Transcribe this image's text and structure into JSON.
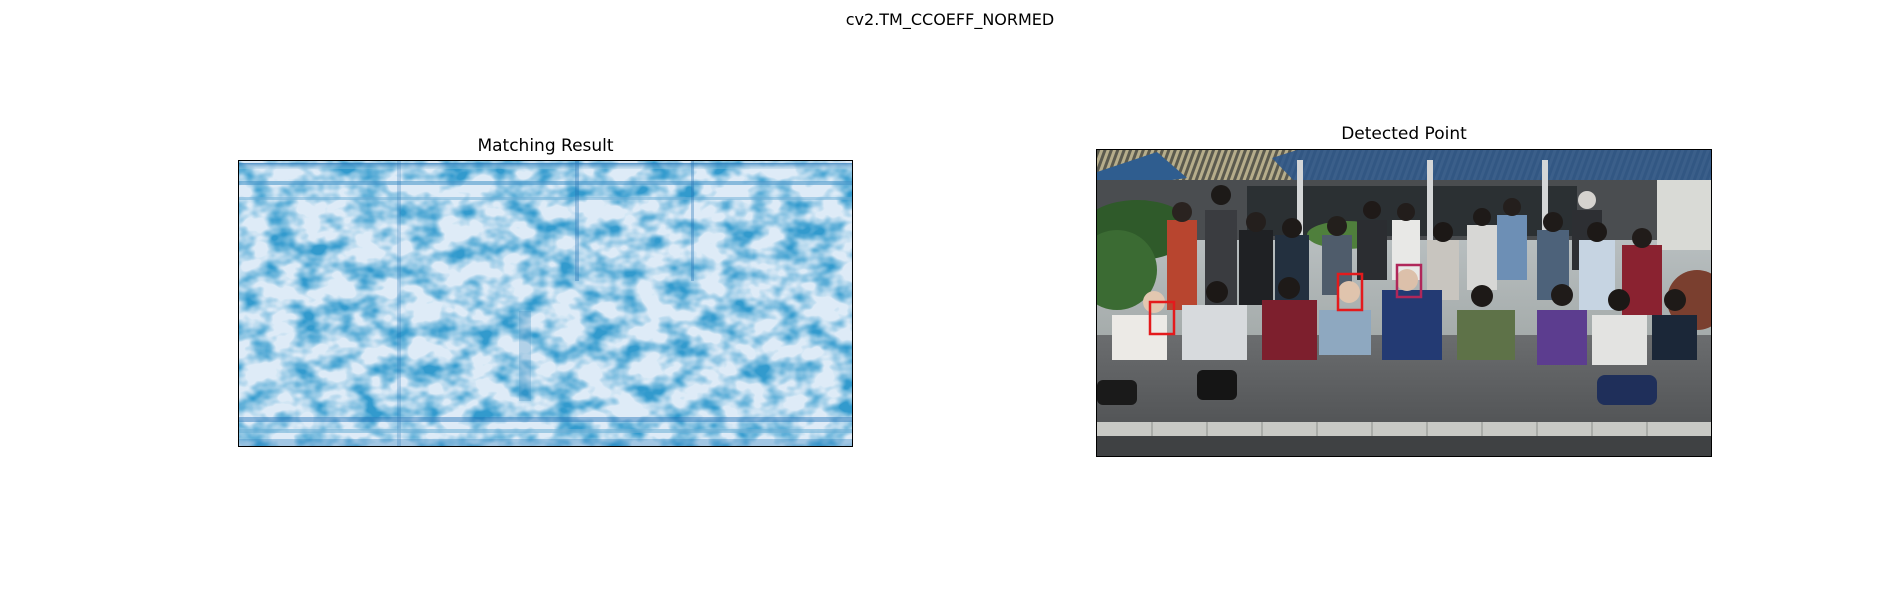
{
  "figure": {
    "suptitle": "cv2.TM_CCOEFF_NORMED"
  },
  "left_panel": {
    "title": "Matching Result",
    "colormap": "Blues",
    "colors": {
      "dark": "#08519c",
      "mid": "#6baed6",
      "light": "#deebf7"
    }
  },
  "right_panel": {
    "title": "Detected Point",
    "box_color": "#e41a1c"
  }
}
